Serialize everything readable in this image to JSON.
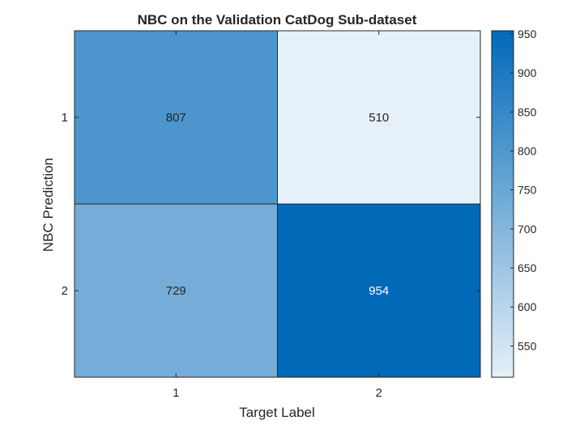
{
  "chart_data": {
    "type": "heatmap",
    "title": "NBC on the Validation CatDog Sub-dataset",
    "xlabel": "Target Label",
    "ylabel": "NBC Prediction",
    "x_categories": [
      "1",
      "2"
    ],
    "y_categories": [
      "1",
      "2"
    ],
    "values": [
      [
        807,
        510
      ],
      [
        729,
        954
      ]
    ],
    "colorbar": {
      "min": 510,
      "max": 954,
      "ticks": [
        "550",
        "600",
        "650",
        "700",
        "750",
        "800",
        "850",
        "900",
        "950"
      ],
      "low_color": "#e6f0f8",
      "high_color": "#0069b8"
    },
    "grid": false
  }
}
